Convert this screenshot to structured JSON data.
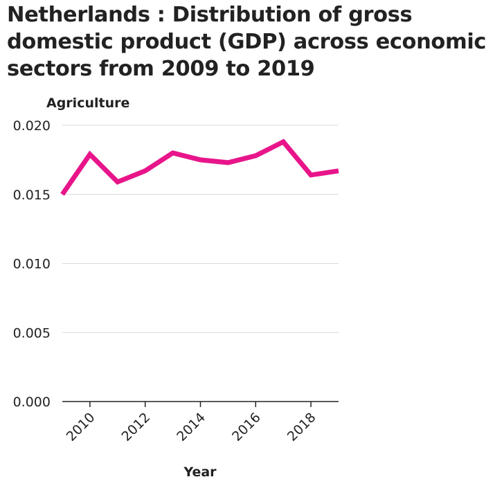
{
  "chart_data": {
    "type": "line",
    "title": "Netherlands : Distribution of gross domestic product (GDP) across economic sectors from 2009 to 2019",
    "xlabel": "Year",
    "ylabel": "Agriculture",
    "x": [
      2009,
      2010,
      2011,
      2012,
      2013,
      2014,
      2015,
      2016,
      2017,
      2018,
      2019
    ],
    "series": [
      {
        "values": [
          0.015,
          0.0179,
          0.0159,
          0.0167,
          0.018,
          0.0175,
          0.0173,
          0.0178,
          0.0188,
          0.0164,
          0.0167
        ]
      }
    ],
    "xlim": [
      2009,
      2019
    ],
    "ylim": [
      0,
      0.02
    ],
    "yticks": [
      "0.000",
      "0.005",
      "0.010",
      "0.015",
      "0.020"
    ],
    "xticks": [
      "2010",
      "2012",
      "2014",
      "2016",
      "2018"
    ],
    "grid": true,
    "line_color": "#e8158a",
    "grid_color": "#d9d9d9"
  }
}
